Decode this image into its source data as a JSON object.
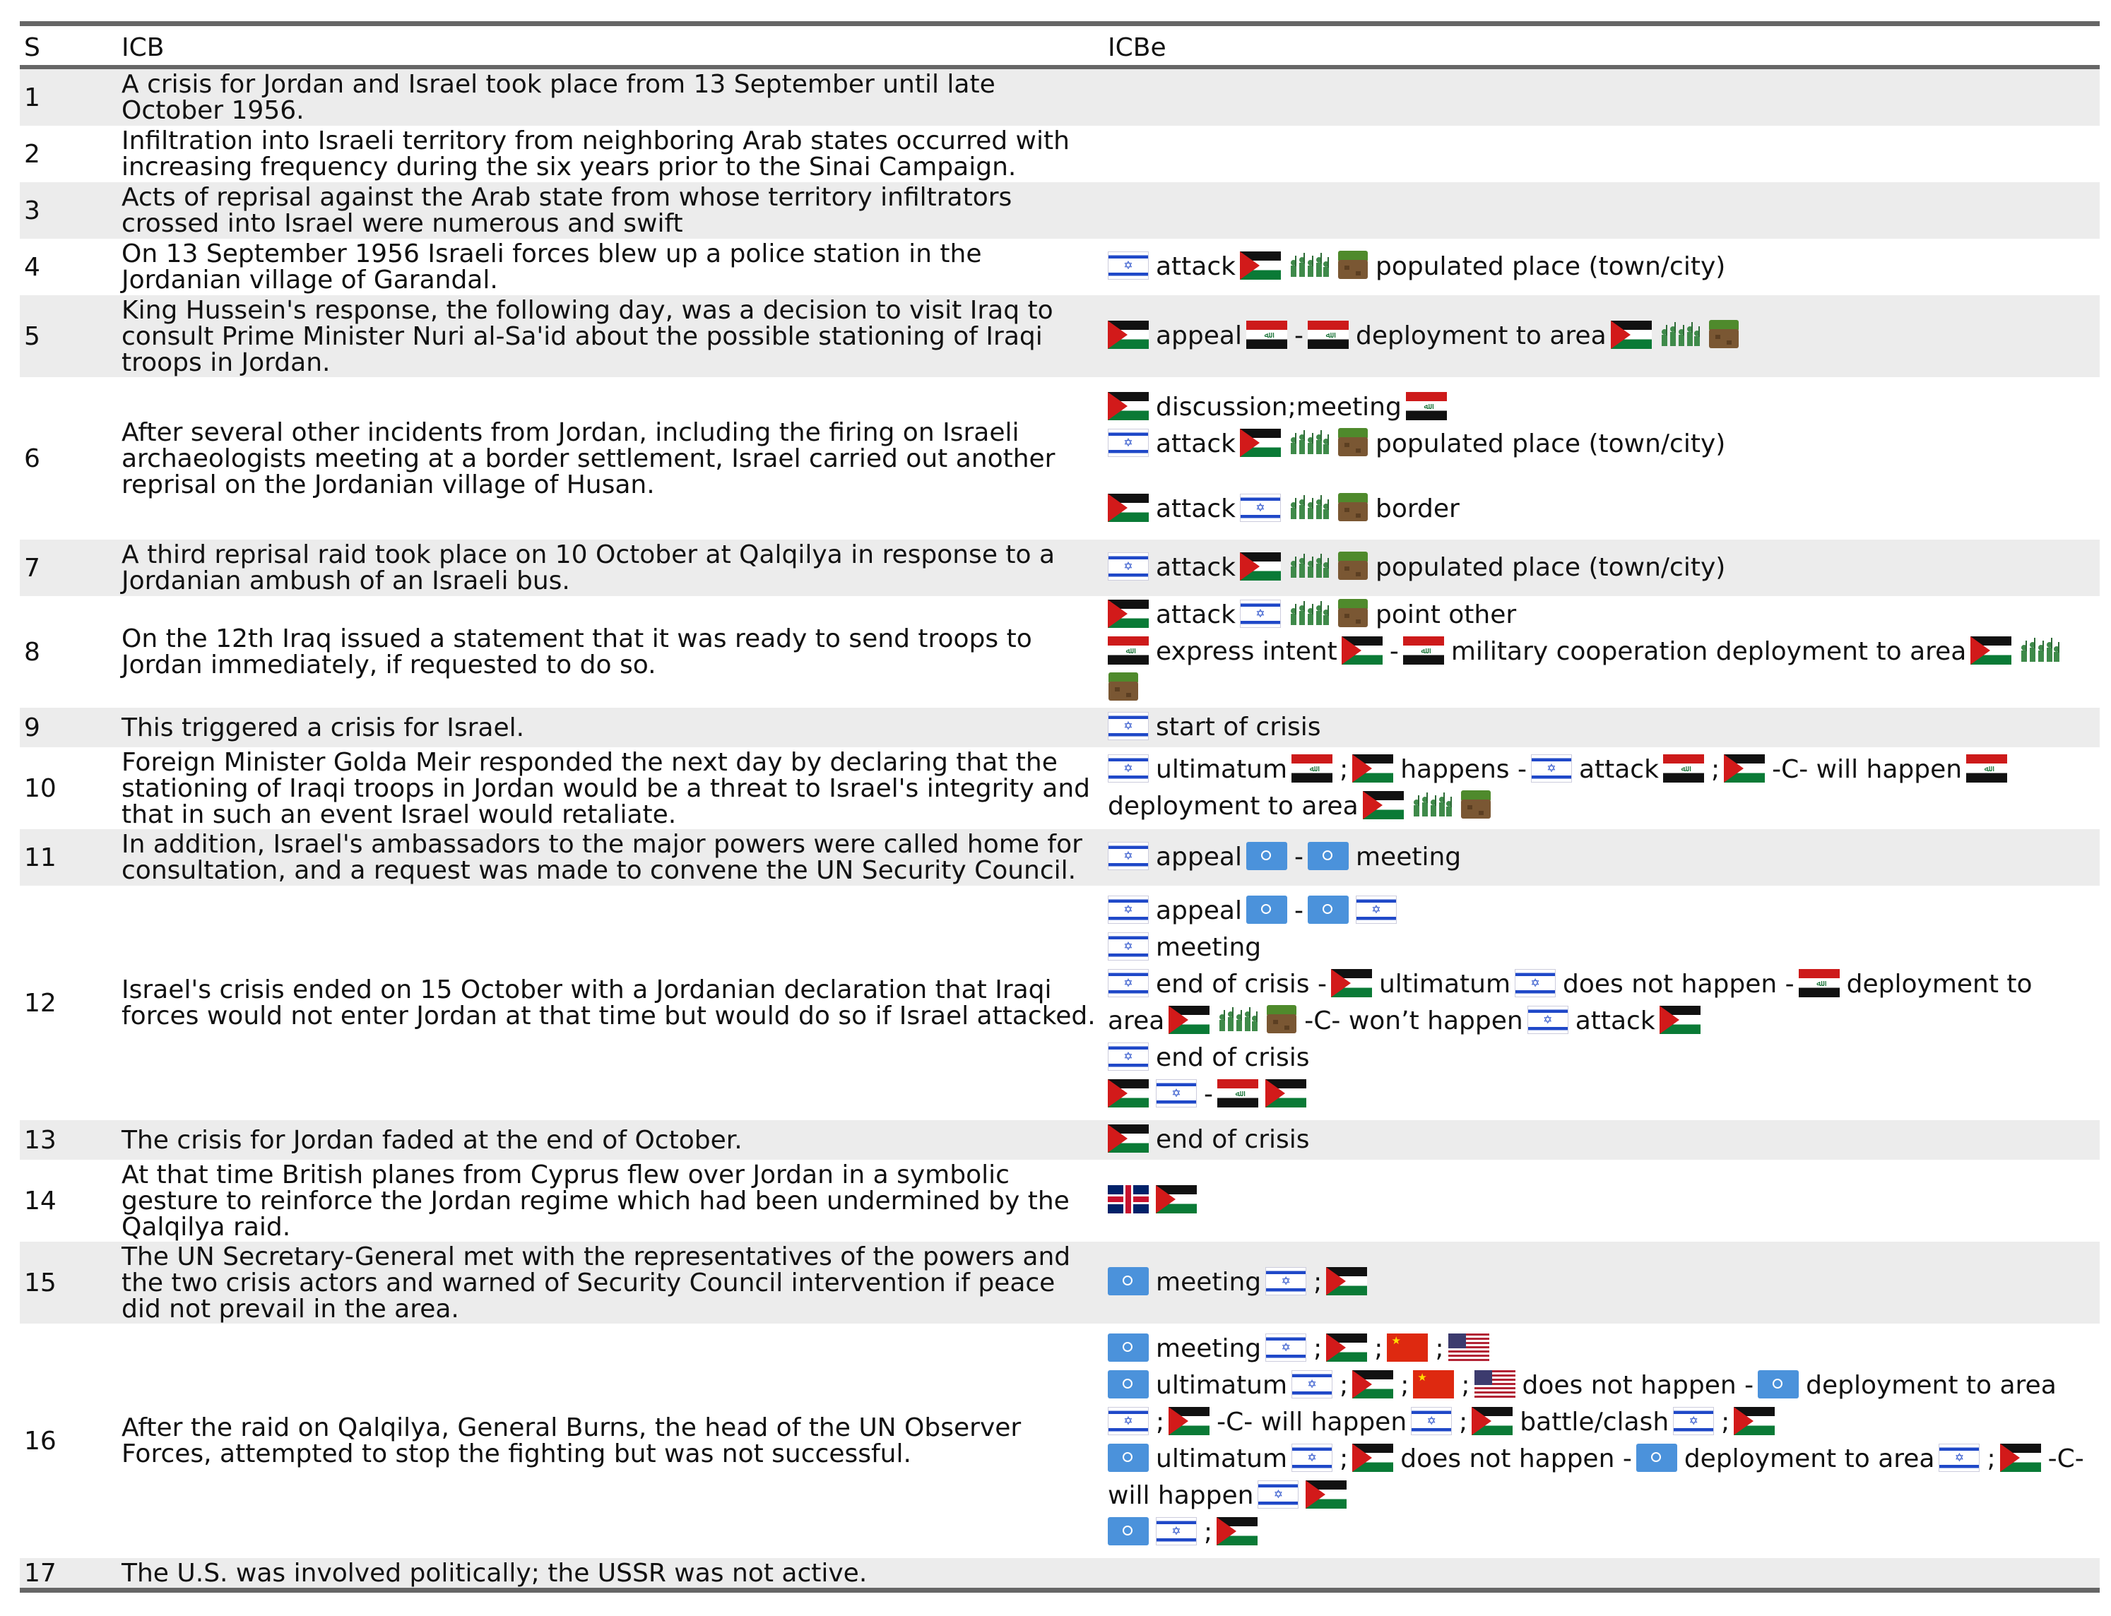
{
  "headers": {
    "s": "S",
    "icb": "ICB",
    "icbe": "ICBe"
  },
  "rows": [
    {
      "s": "1",
      "icb": [
        "A crisis for Jordan and Israel took place from 13 September until late",
        "October 1956."
      ]
    },
    {
      "s": "2",
      "icb": [
        "Infiltration into Israeli territory from neighboring Arab states occurred with",
        "increasing frequency during the six years prior to the Sinai Campaign."
      ]
    },
    {
      "s": "3",
      "icb": [
        "Acts of reprisal against the Arab state from whose territory infiltrators",
        "crossed into Israel were numerous and swift"
      ]
    },
    {
      "s": "4",
      "icb": [
        "On 13 September 1956 Israeli forces blew up a police station in the",
        "Jordanian village of Garandal."
      ]
    },
    {
      "s": "5",
      "icb": [
        "King Hussein's response, the following day, was a decision to visit Iraq to",
        "consult Prime Minister Nuri al-Sa'id about the possible stationing of Iraqi",
        "troops in Jordan."
      ]
    },
    {
      "s": "6",
      "icb": [
        "After several other incidents from Jordan, including the firing on Israeli",
        "archaeologists meeting at a border settlement, Israel carried out another",
        "reprisal on the Jordanian village of Husan."
      ]
    },
    {
      "s": "7",
      "icb": [
        "A third reprisal raid took place on 10 October at Qalqilya in response to a",
        "Jordanian ambush of an Israeli bus."
      ]
    },
    {
      "s": "8",
      "icb": [
        "On the 12th Iraq issued a statement that it was ready to send troops to",
        "Jordan immediately, if requested to do so."
      ]
    },
    {
      "s": "9",
      "icb": [
        "This triggered a crisis for Israel."
      ]
    },
    {
      "s": "10",
      "icb": [
        "Foreign Minister Golda Meir responded the next day by declaring that the",
        "stationing of Iraqi troops in Jordan would be a threat to Israel's integrity and",
        "that in such an event Israel would retaliate."
      ]
    },
    {
      "s": "11",
      "icb": [
        "In addition, Israel's ambassadors to the major powers were called home for",
        "consultation, and a request was made to convene the UN Security Council."
      ]
    },
    {
      "s": "12",
      "icb": [
        "Israel's crisis ended on 15 October with a Jordanian declaration that Iraqi",
        "forces would not enter Jordan at that time but would do so if Israel attacked."
      ]
    },
    {
      "s": "13",
      "icb": [
        "The crisis for Jordan faded at the end of October."
      ]
    },
    {
      "s": "14",
      "icb": [
        "At that time British planes from Cyprus flew over Jordan in a symbolic",
        "gesture to reinforce the Jordan regime which had been undermined by the",
        "Qalqilya raid."
      ]
    },
    {
      "s": "15",
      "icb": [
        "The UN Secretary-General met with the representatives of the powers and",
        "the two crisis actors and warned of Security Council intervention if peace",
        "did not prevail in the area."
      ]
    },
    {
      "s": "16",
      "icb": [
        "After the raid on Qalqilya, General Burns, the head of the UN Observer",
        "Forces, attempted to stop the fighting but was not successful."
      ]
    },
    {
      "s": "17",
      "icb": [
        "The U.S. was involved politically; the USSR was not active."
      ]
    }
  ],
  "events": {
    "attack": "attack",
    "populated_place": "populated place (town/city)",
    "appeal": "appeal",
    "dash": "-",
    "semicolon": ";",
    "deployment_to_area": "deployment to area",
    "discussion_meeting": "discussion;meeting",
    "border": "border",
    "point_other": "point other",
    "express_intent": "express intent",
    "military_cooperation": "military cooperation deployment to area",
    "start_of_crisis": "start of crisis",
    "ultimatum": "ultimatum",
    "happens": "happens -",
    "will_happen": "-C- will happen",
    "meeting": "meeting",
    "end_of_crisis": "end of crisis",
    "end_of_crisis_dash": "end of crisis -",
    "does_not_happen": "does not happen -",
    "deployment_to": "deployment to",
    "area": "area",
    "wont_happen": "-C- won’t happen",
    "battle_clash": "battle/clash",
    "c_dash": "-C-",
    "will_happen_short": "will happen"
  },
  "icons": {
    "israel": "israel-flag-icon",
    "jordan": "jordan-flag-icon",
    "iraq": "iraq-flag-icon",
    "un": "un-flag-icon",
    "china": "china-flag-icon",
    "usa": "usa-flag-icon",
    "uk": "uk-flag-icon",
    "troops": "soldiers-icon",
    "land": "land-block-icon"
  },
  "colors": {
    "rule": "#666666",
    "stripe": "#ececec",
    "text": "#111111"
  }
}
